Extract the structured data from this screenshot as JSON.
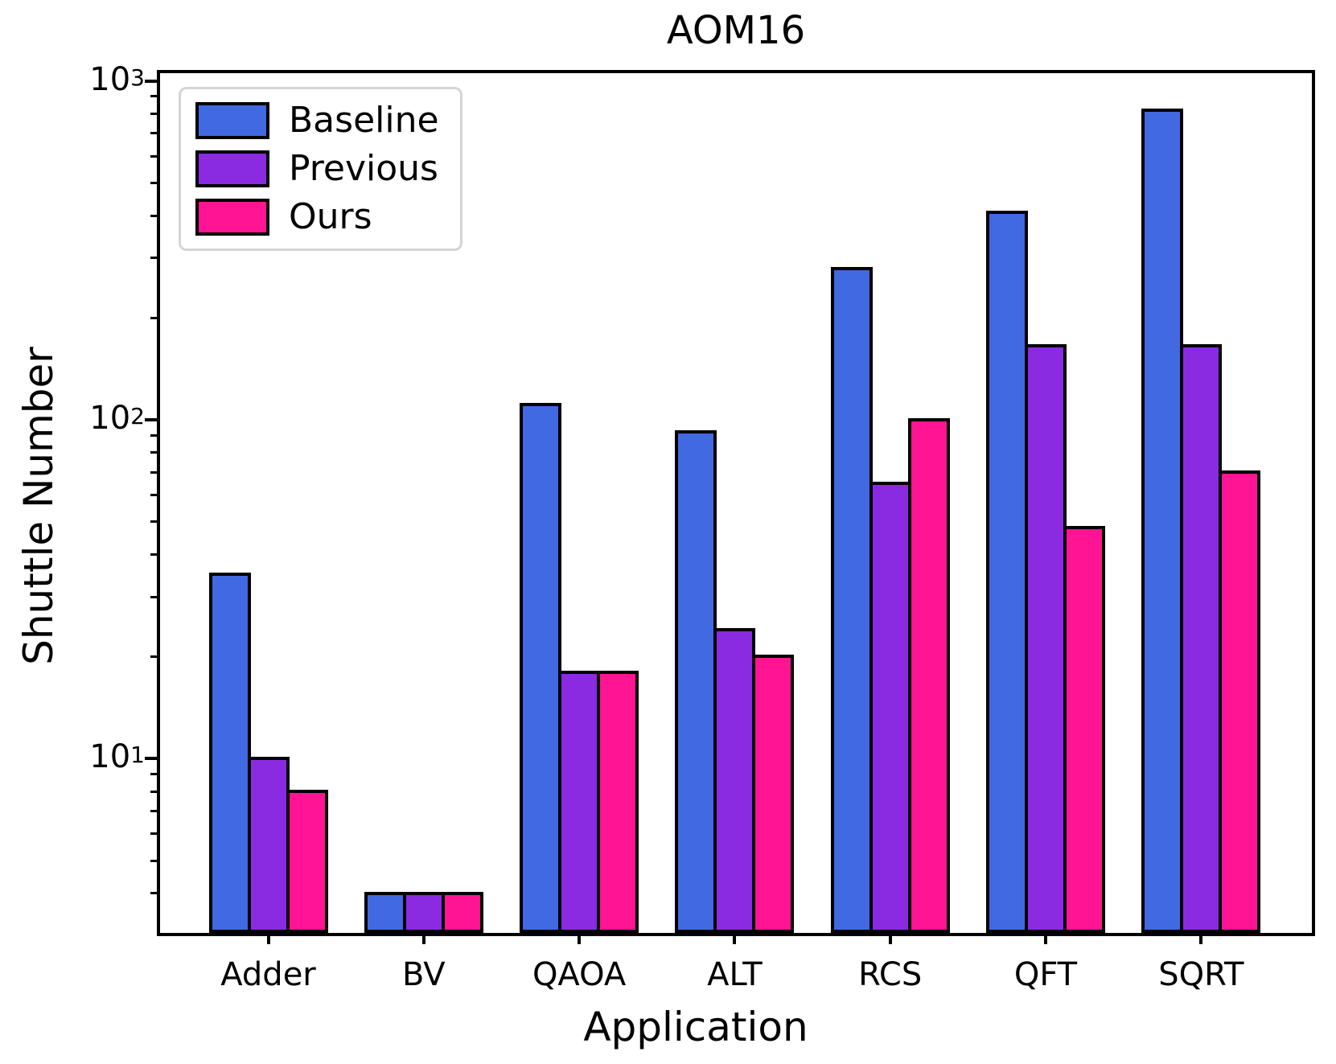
{
  "chart_data": {
    "type": "bar",
    "title": "AOM16",
    "xlabel": "Application",
    "ylabel": "Shuttle Number",
    "yscale": "log",
    "ylim": [
      3,
      1070
    ],
    "grid": false,
    "legend_position": "upper left",
    "bar_edge_color": "#000000",
    "categories": [
      "Adder",
      "BV",
      "QAOA",
      "ALT",
      "RCS",
      "QFT",
      "SQRT"
    ],
    "series": [
      {
        "name": "Baseline",
        "color": "#4169E1",
        "values": [
          35,
          4,
          111,
          92,
          280,
          410,
          820
        ]
      },
      {
        "name": "Previous",
        "color": "#8A2BE2",
        "values": [
          10,
          4,
          18,
          24,
          65,
          165,
          165
        ]
      },
      {
        "name": "Ours",
        "color": "#FF1493",
        "values": [
          8,
          4,
          18,
          20,
          100,
          48,
          70
        ]
      }
    ],
    "yticks": [
      {
        "base": "10",
        "exp": "1",
        "value": 10
      },
      {
        "base": "10",
        "exp": "2",
        "value": 100
      },
      {
        "base": "10",
        "exp": "3",
        "value": 1000
      }
    ]
  }
}
